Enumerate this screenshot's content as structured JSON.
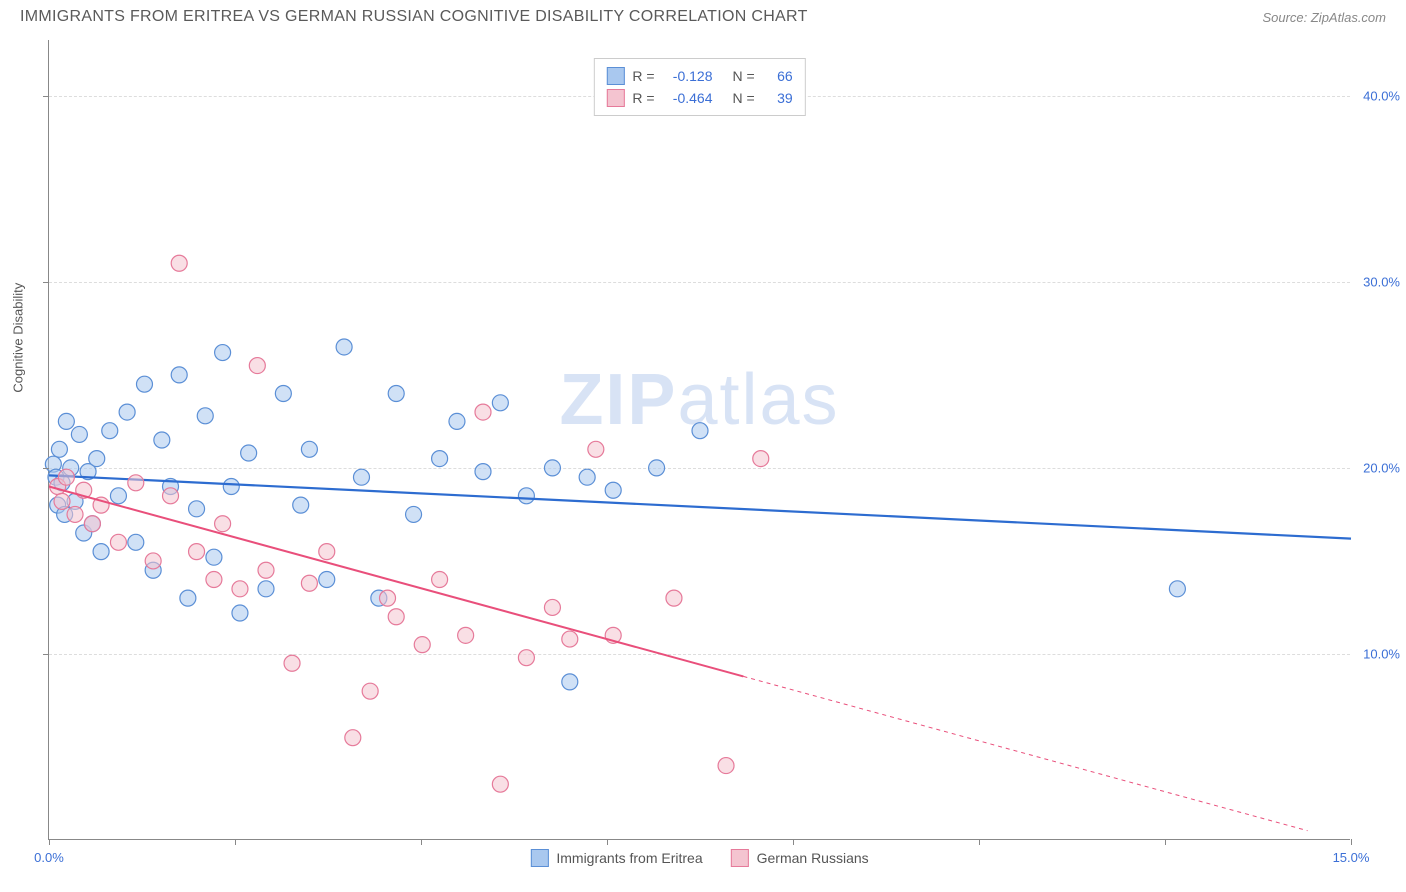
{
  "header": {
    "title": "IMMIGRANTS FROM ERITREA VS GERMAN RUSSIAN COGNITIVE DISABILITY CORRELATION CHART",
    "source_prefix": "Source: ",
    "source_name": "ZipAtlas.com"
  },
  "watermark": {
    "zip": "ZIP",
    "atlas": "atlas"
  },
  "chart": {
    "type": "scatter",
    "y_axis_label": "Cognitive Disability",
    "background_color": "#ffffff",
    "grid_color": "#dddddd",
    "axis_color": "#888888",
    "tick_label_color": "#3b6fd6",
    "x_domain": [
      0,
      15
    ],
    "y_domain": [
      0,
      43
    ],
    "x_ticks": [
      0,
      15
    ],
    "x_tick_labels": [
      "0.0%",
      "15.0%"
    ],
    "x_minor_ticks": [
      2.14,
      4.29,
      6.43,
      8.57,
      10.71,
      12.86
    ],
    "y_ticks": [
      10,
      20,
      30,
      40
    ],
    "y_tick_labels": [
      "10.0%",
      "20.0%",
      "30.0%",
      "40.0%"
    ],
    "marker_radius": 8,
    "marker_opacity": 0.55,
    "series": [
      {
        "id": "eritrea",
        "label": "Immigrants from Eritrea",
        "color_fill": "#a9c8ef",
        "color_stroke": "#5b8fd6",
        "line_color": "#2d6cd0",
        "line_width": 2.2,
        "R": "-0.128",
        "N": "66",
        "regression": {
          "x1": 0,
          "y1": 19.6,
          "x2": 15,
          "y2": 16.2,
          "solid_to": 15
        },
        "points": [
          [
            0.05,
            20.2
          ],
          [
            0.08,
            19.5
          ],
          [
            0.1,
            18.0
          ],
          [
            0.12,
            21.0
          ],
          [
            0.15,
            19.2
          ],
          [
            0.18,
            17.5
          ],
          [
            0.2,
            22.5
          ],
          [
            0.25,
            20.0
          ],
          [
            0.3,
            18.2
          ],
          [
            0.35,
            21.8
          ],
          [
            0.4,
            16.5
          ],
          [
            0.45,
            19.8
          ],
          [
            0.5,
            17.0
          ],
          [
            0.55,
            20.5
          ],
          [
            0.6,
            15.5
          ],
          [
            0.7,
            22.0
          ],
          [
            0.8,
            18.5
          ],
          [
            0.9,
            23.0
          ],
          [
            1.0,
            16.0
          ],
          [
            1.1,
            24.5
          ],
          [
            1.2,
            14.5
          ],
          [
            1.3,
            21.5
          ],
          [
            1.4,
            19.0
          ],
          [
            1.5,
            25.0
          ],
          [
            1.6,
            13.0
          ],
          [
            1.7,
            17.8
          ],
          [
            1.8,
            22.8
          ],
          [
            1.9,
            15.2
          ],
          [
            2.0,
            26.2
          ],
          [
            2.1,
            19.0
          ],
          [
            2.2,
            12.2
          ],
          [
            2.3,
            20.8
          ],
          [
            2.5,
            13.5
          ],
          [
            2.7,
            24.0
          ],
          [
            2.9,
            18.0
          ],
          [
            3.0,
            21.0
          ],
          [
            3.2,
            14.0
          ],
          [
            3.4,
            26.5
          ],
          [
            3.6,
            19.5
          ],
          [
            3.8,
            13.0
          ],
          [
            4.0,
            24.0
          ],
          [
            4.2,
            17.5
          ],
          [
            4.5,
            20.5
          ],
          [
            4.7,
            22.5
          ],
          [
            5.0,
            19.8
          ],
          [
            5.2,
            23.5
          ],
          [
            5.5,
            18.5
          ],
          [
            5.8,
            20.0
          ],
          [
            6.0,
            8.5
          ],
          [
            6.2,
            19.5
          ],
          [
            6.5,
            18.8
          ],
          [
            7.0,
            20.0
          ],
          [
            7.5,
            22.0
          ],
          [
            13.0,
            13.5
          ]
        ]
      },
      {
        "id": "german_russian",
        "label": "German Russians",
        "color_fill": "#f4c4d0",
        "color_stroke": "#e67a9a",
        "line_color": "#e94f7b",
        "line_width": 2.0,
        "R": "-0.464",
        "N": "39",
        "regression": {
          "x1": 0,
          "y1": 19.0,
          "x2": 14.5,
          "y2": 0.5,
          "solid_to": 8.0
        },
        "points": [
          [
            0.1,
            19.0
          ],
          [
            0.15,
            18.2
          ],
          [
            0.2,
            19.5
          ],
          [
            0.3,
            17.5
          ],
          [
            0.4,
            18.8
          ],
          [
            0.5,
            17.0
          ],
          [
            0.6,
            18.0
          ],
          [
            0.8,
            16.0
          ],
          [
            1.0,
            19.2
          ],
          [
            1.2,
            15.0
          ],
          [
            1.4,
            18.5
          ],
          [
            1.5,
            31.0
          ],
          [
            1.7,
            15.5
          ],
          [
            1.9,
            14.0
          ],
          [
            2.0,
            17.0
          ],
          [
            2.2,
            13.5
          ],
          [
            2.4,
            25.5
          ],
          [
            2.5,
            14.5
          ],
          [
            2.8,
            9.5
          ],
          [
            3.0,
            13.8
          ],
          [
            3.2,
            15.5
          ],
          [
            3.5,
            5.5
          ],
          [
            3.7,
            8.0
          ],
          [
            3.9,
            13.0
          ],
          [
            4.0,
            12.0
          ],
          [
            4.3,
            10.5
          ],
          [
            4.5,
            14.0
          ],
          [
            4.8,
            11.0
          ],
          [
            5.0,
            23.0
          ],
          [
            5.2,
            3.0
          ],
          [
            5.5,
            9.8
          ],
          [
            5.8,
            12.5
          ],
          [
            6.0,
            10.8
          ],
          [
            6.3,
            21.0
          ],
          [
            6.5,
            11.0
          ],
          [
            7.2,
            13.0
          ],
          [
            7.8,
            4.0
          ],
          [
            8.2,
            20.5
          ]
        ]
      }
    ],
    "stats_legend": {
      "R_label": "R =",
      "N_label": "N ="
    }
  }
}
